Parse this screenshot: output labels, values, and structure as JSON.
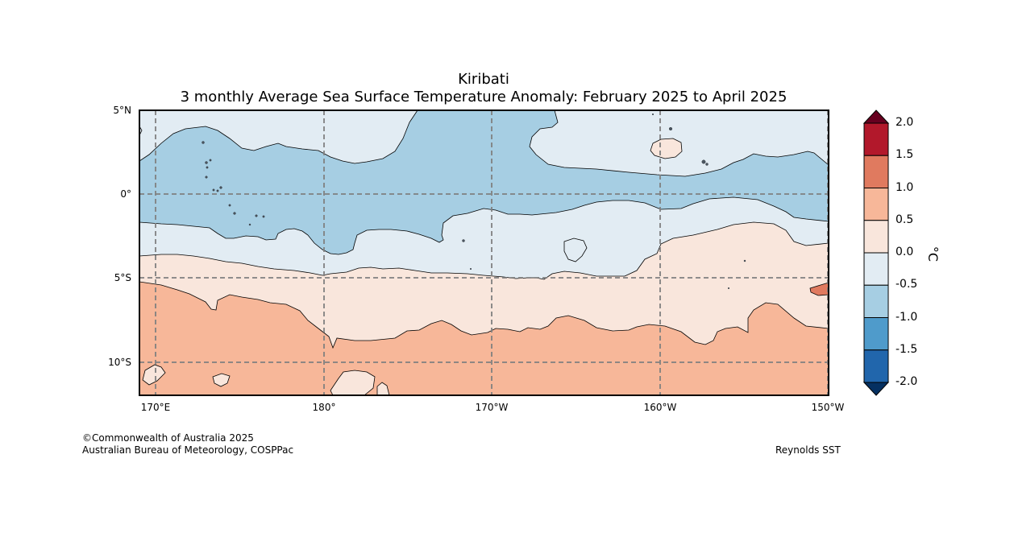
{
  "title": "Kiribati",
  "subtitle": "3 monthly Average Sea Surface Temperature Anomaly: February 2025 to April 2025",
  "lat_labels": [
    "5°N",
    "0°",
    "5°S",
    "10°S"
  ],
  "lon_labels": [
    "170°E",
    "180°",
    "170°W",
    "160°W",
    "150°W"
  ],
  "colorbar": {
    "ticks": [
      "2.0",
      "1.5",
      "1.0",
      "0.5",
      "0.0",
      "-0.5",
      "-1.0",
      "-1.5",
      "-2.0"
    ],
    "unit": "°C",
    "colors": [
      "#67001f",
      "#b2182b",
      "#e07a5f",
      "#f7b799",
      "#f9e6dc",
      "#e2ecf3",
      "#a6cee3",
      "#4f9bcb",
      "#2166ac",
      "#053061"
    ]
  },
  "footer": {
    "copyright": "©Commonwealth of Australia 2025",
    "agency": "Australian Bureau of Meteorology, COSPPac",
    "source": "Reynolds SST"
  }
}
